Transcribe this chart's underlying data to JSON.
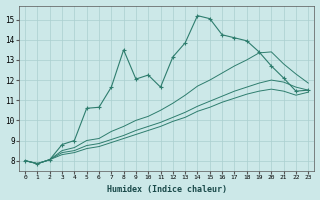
{
  "xlabel": "Humidex (Indice chaleur)",
  "ylabel": "",
  "background_color": "#cce8e8",
  "line_color": "#2e7d6e",
  "grid_color": "#aacfcf",
  "xlim": [
    -0.5,
    23.5
  ],
  "ylim": [
    7.5,
    15.7
  ],
  "xticks": [
    0,
    1,
    2,
    3,
    4,
    5,
    6,
    7,
    8,
    9,
    10,
    11,
    12,
    13,
    14,
    15,
    16,
    17,
    18,
    19,
    20,
    21,
    22,
    23
  ],
  "yticks": [
    8,
    9,
    10,
    11,
    12,
    13,
    14,
    15
  ],
  "series": [
    {
      "x": [
        0,
        1,
        2,
        3,
        4,
        5,
        6,
        7,
        8,
        9,
        10,
        11,
        12,
        13,
        14,
        15,
        16,
        17,
        18,
        19,
        20,
        21,
        22,
        23
      ],
      "y": [
        8.0,
        7.85,
        8.05,
        8.8,
        9.0,
        10.6,
        10.65,
        11.65,
        13.5,
        12.05,
        12.25,
        11.65,
        13.15,
        13.85,
        15.2,
        15.05,
        14.25,
        14.1,
        13.95,
        13.4,
        12.7,
        12.1,
        11.45,
        11.5
      ],
      "marker": true
    },
    {
      "x": [
        0,
        1,
        2,
        3,
        4,
        5,
        6,
        7,
        8,
        9,
        10,
        11,
        12,
        13,
        14,
        15,
        16,
        17,
        18,
        19,
        20,
        21,
        22,
        23
      ],
      "y": [
        8.0,
        7.85,
        8.05,
        8.5,
        8.65,
        9.0,
        9.1,
        9.45,
        9.7,
        10.0,
        10.2,
        10.5,
        10.85,
        11.25,
        11.7,
        12.0,
        12.35,
        12.7,
        13.0,
        13.35,
        13.4,
        12.8,
        12.3,
        11.85
      ],
      "marker": false
    },
    {
      "x": [
        0,
        1,
        2,
        3,
        4,
        5,
        6,
        7,
        8,
        9,
        10,
        11,
        12,
        13,
        14,
        15,
        16,
        17,
        18,
        19,
        20,
        21,
        22,
        23
      ],
      "y": [
        8.0,
        7.85,
        8.05,
        8.4,
        8.5,
        8.75,
        8.85,
        9.05,
        9.25,
        9.5,
        9.7,
        9.9,
        10.15,
        10.4,
        10.7,
        10.95,
        11.2,
        11.45,
        11.65,
        11.85,
        12.0,
        11.9,
        11.65,
        11.5
      ],
      "marker": false
    },
    {
      "x": [
        0,
        1,
        2,
        3,
        4,
        5,
        6,
        7,
        8,
        9,
        10,
        11,
        12,
        13,
        14,
        15,
        16,
        17,
        18,
        19,
        20,
        21,
        22,
        23
      ],
      "y": [
        8.0,
        7.85,
        8.05,
        8.3,
        8.4,
        8.6,
        8.7,
        8.9,
        9.1,
        9.3,
        9.5,
        9.7,
        9.95,
        10.15,
        10.45,
        10.65,
        10.9,
        11.1,
        11.3,
        11.45,
        11.55,
        11.45,
        11.25,
        11.4
      ],
      "marker": false
    }
  ]
}
